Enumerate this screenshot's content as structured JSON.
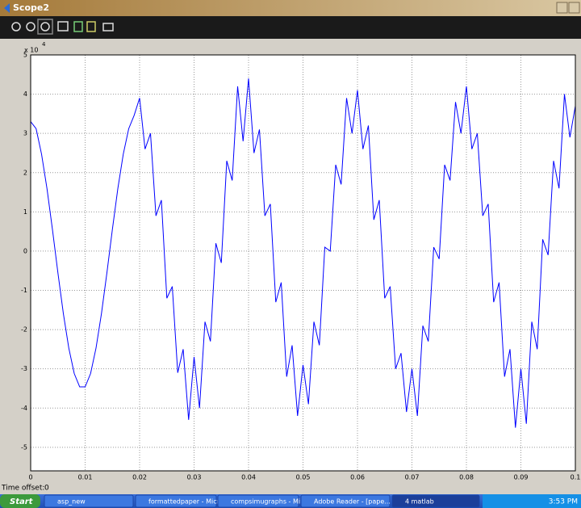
{
  "window": {
    "title": "Scope2"
  },
  "chart_data": {
    "type": "line",
    "y_exponent_base": "x 10",
    "y_exponent": "4",
    "color": "#0000ff",
    "grid": true,
    "xlim": [
      0,
      0.1
    ],
    "ylim": [
      -5.6,
      5
    ],
    "xticks": [
      0,
      0.01,
      0.02,
      0.03,
      0.04,
      0.05,
      0.06,
      0.07,
      0.08,
      0.09,
      0.1
    ],
    "yticks": [
      -5,
      -4,
      -3,
      -2,
      -1,
      0,
      1,
      2,
      3,
      4,
      5
    ],
    "x": [
      0,
      0.001,
      0.002,
      0.003,
      0.004,
      0.005,
      0.006,
      0.007,
      0.008,
      0.009,
      0.01,
      0.011,
      0.012,
      0.013,
      0.014,
      0.015,
      0.016,
      0.017,
      0.018,
      0.019,
      0.02,
      0.021,
      0.022,
      0.023,
      0.024,
      0.025,
      0.026,
      0.027,
      0.028,
      0.029,
      0.03,
      0.031,
      0.032,
      0.033,
      0.034,
      0.035,
      0.036,
      0.037,
      0.038,
      0.039,
      0.04,
      0.041,
      0.042,
      0.043,
      0.044,
      0.045,
      0.046,
      0.047,
      0.048,
      0.049,
      0.05,
      0.051,
      0.052,
      0.053,
      0.054,
      0.055,
      0.056,
      0.057,
      0.058,
      0.059,
      0.06,
      0.061,
      0.062,
      0.063,
      0.064,
      0.065,
      0.066,
      0.067,
      0.068,
      0.069,
      0.07,
      0.071,
      0.072,
      0.073,
      0.074,
      0.075,
      0.076,
      0.077,
      0.078,
      0.079,
      0.08,
      0.081,
      0.082,
      0.083,
      0.084,
      0.085,
      0.086,
      0.087,
      0.088,
      0.089,
      0.09,
      0.091,
      0.092,
      0.093,
      0.094,
      0.095,
      0.096,
      0.097,
      0.098,
      0.099,
      0.1
    ],
    "values": [
      3.3,
      3.12,
      2.47,
      1.59,
      0.55,
      -0.55,
      -1.59,
      -2.47,
      -3.12,
      -3.46,
      -3.46,
      -3.12,
      -2.47,
      -1.59,
      -0.55,
      0.55,
      1.59,
      2.47,
      3.12,
      3.46,
      3.9,
      2.6,
      3.0,
      0.9,
      1.3,
      -1.2,
      -0.9,
      -3.1,
      -2.5,
      -4.3,
      -2.7,
      -4.0,
      -1.8,
      -2.3,
      0.2,
      -0.3,
      2.3,
      1.8,
      4.2,
      2.8,
      4.4,
      2.5,
      3.1,
      0.9,
      1.2,
      -1.3,
      -0.8,
      -3.2,
      -2.4,
      -4.2,
      -2.9,
      -3.9,
      -1.8,
      -2.4,
      0.1,
      0.0,
      2.2,
      1.7,
      3.9,
      3.0,
      4.1,
      2.6,
      3.2,
      0.8,
      1.3,
      -1.2,
      -0.9,
      -3.0,
      -2.6,
      -4.1,
      -3.0,
      -4.2,
      -1.9,
      -2.3,
      0.1,
      -0.2,
      2.2,
      1.8,
      3.8,
      3.0,
      4.2,
      2.6,
      3.0,
      0.9,
      1.2,
      -1.3,
      -0.8,
      -3.2,
      -2.5,
      -4.5,
      -3.0,
      -4.4,
      -1.8,
      -2.5,
      0.3,
      -0.1,
      2.3,
      1.6,
      4.0,
      2.9,
      3.7
    ]
  },
  "time_offset": {
    "label": "Time offset:",
    "value": "0"
  },
  "taskbar": {
    "start": "Start",
    "items": [
      "asp_new",
      "formattedpaper - Micr...",
      "compsimugraphs - Micr...",
      "Adobe Reader - [pape...",
      "4 matlab"
    ],
    "clock": "3:53 PM"
  }
}
